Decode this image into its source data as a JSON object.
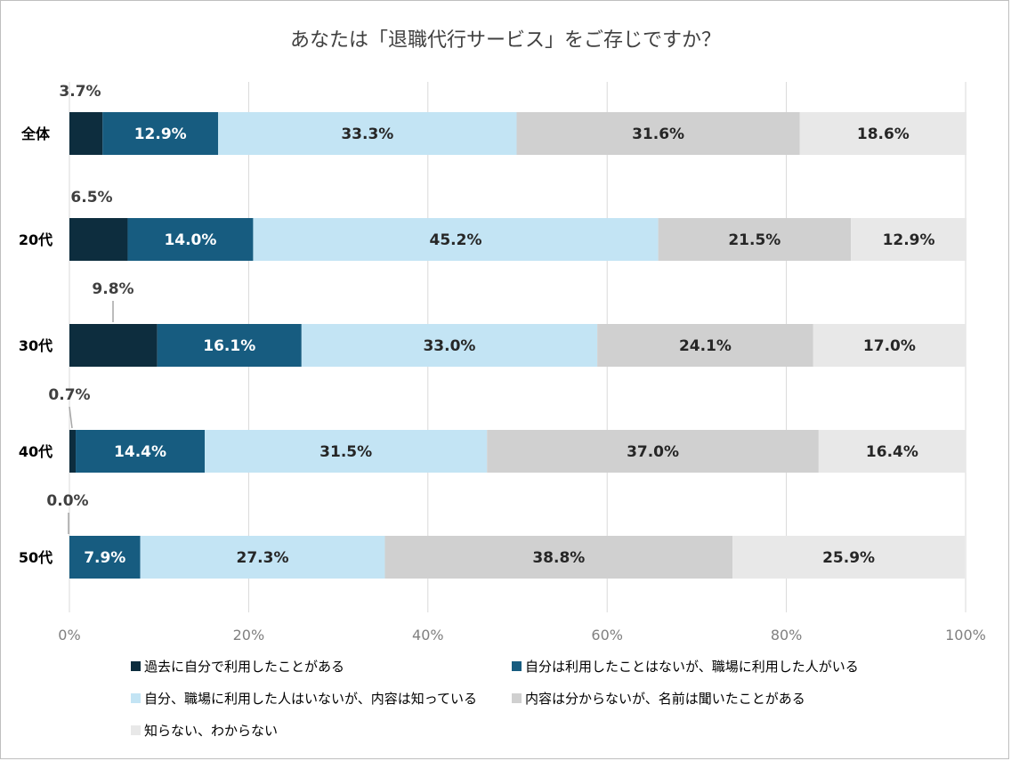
{
  "chart_data": {
    "type": "bar",
    "orientation": "horizontal",
    "stacked": true,
    "title": "あなたは「退職代行サービス」をご存じですか？",
    "categories": [
      "全体",
      "20代",
      "30代",
      "40代",
      "50代"
    ],
    "series": [
      {
        "name": "過去に自分で利用したことがある",
        "color": "#0d2d3e",
        "values": [
          3.7,
          6.5,
          9.8,
          0.7,
          0.0
        ],
        "labels": [
          "3.7%",
          "6.5%",
          "9.8%",
          "0.7%",
          "0.0%"
        ]
      },
      {
        "name": "自分は利用したことはないが、職場に利用した人がいる",
        "color": "#175c80",
        "values": [
          12.9,
          14.0,
          16.1,
          14.4,
          7.9
        ],
        "labels": [
          "12.9%",
          "14.0%",
          "16.1%",
          "14.4%",
          "7.9%"
        ]
      },
      {
        "name": "自分、職場に利用した人はいないが、内容は知っている",
        "color": "#c3e4f4",
        "values": [
          33.3,
          45.2,
          33.0,
          31.5,
          27.3
        ],
        "labels": [
          "33.3%",
          "45.2%",
          "33.0%",
          "31.5%",
          "27.3%"
        ]
      },
      {
        "name": "内容は分からないが、名前は聞いたことがある",
        "color": "#d0d0d0",
        "values": [
          31.6,
          21.5,
          24.1,
          37.0,
          38.8
        ],
        "labels": [
          "31.6%",
          "21.5%",
          "24.1%",
          "37.0%",
          "38.8%"
        ]
      },
      {
        "name": "知らない、わからない",
        "color": "#e8e8e8",
        "values": [
          18.6,
          12.9,
          17.0,
          16.4,
          25.9
        ],
        "labels": [
          "18.6%",
          "12.9%",
          "17.0%",
          "16.4%",
          "25.9%"
        ]
      }
    ],
    "xlim": [
      0,
      100
    ],
    "xticks": [
      "0%",
      "20%",
      "40%",
      "60%",
      "80%",
      "100%"
    ],
    "grid": true,
    "legend_position": "bottom"
  }
}
